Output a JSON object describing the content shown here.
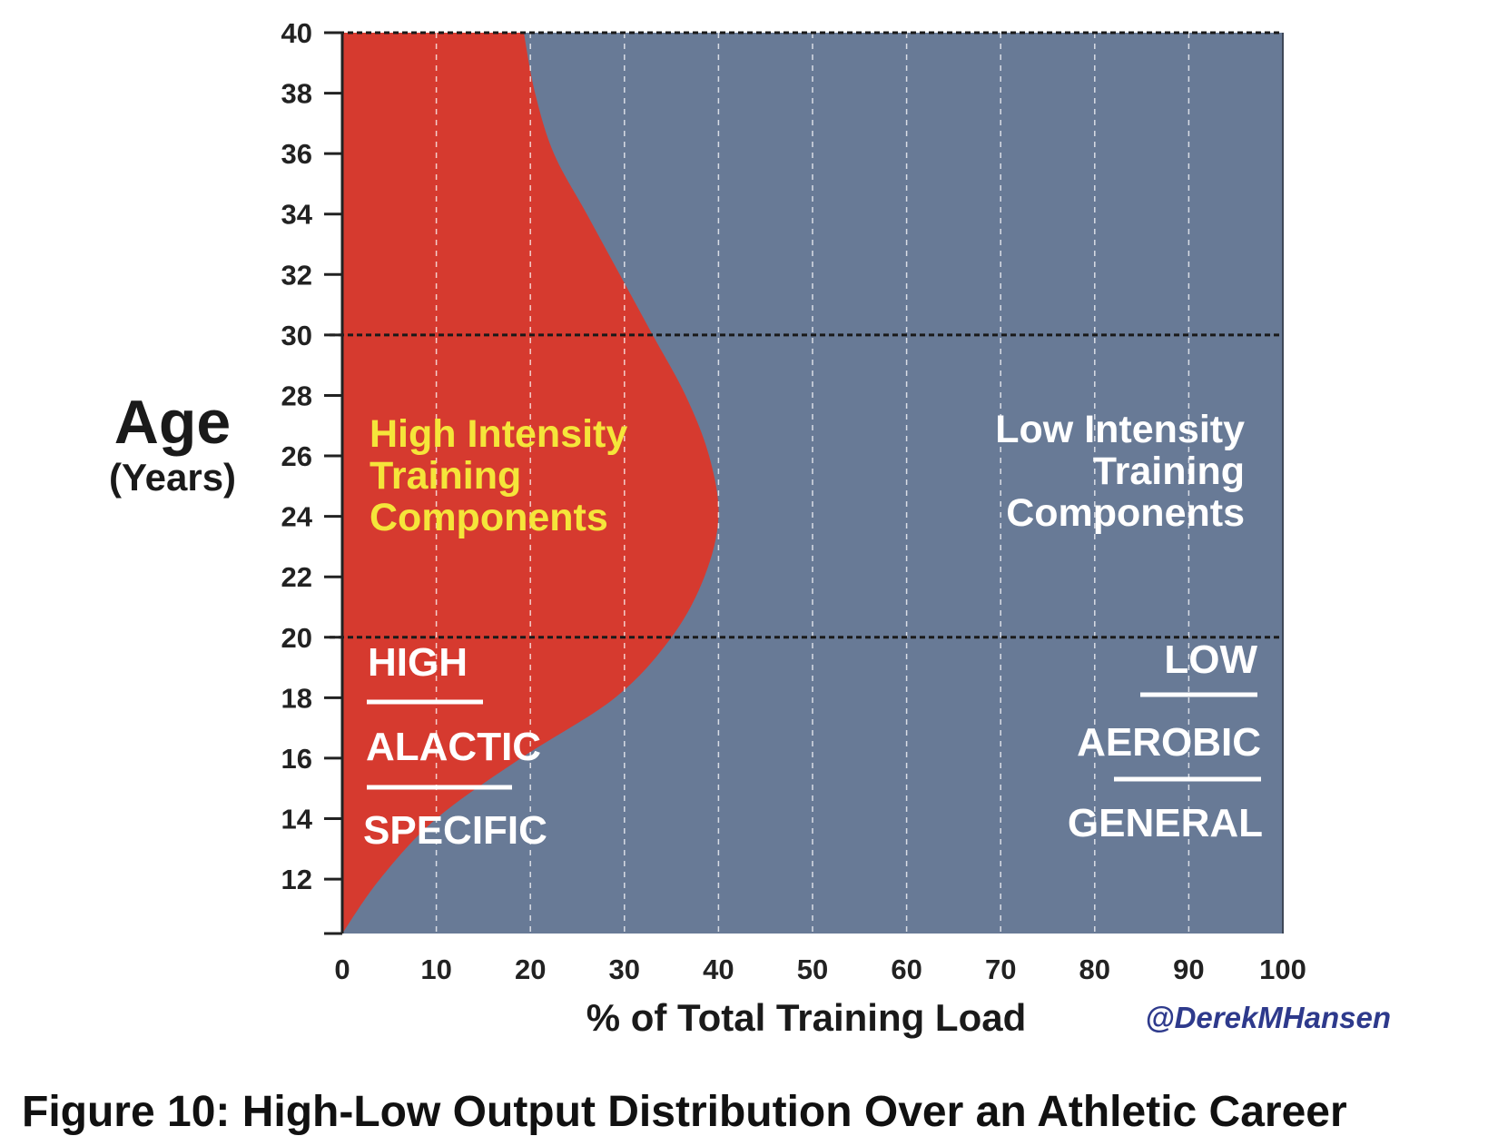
{
  "caption": "Figure 10:  High-Low Output Distribution Over an Athletic Career",
  "chart_data": {
    "type": "area",
    "xlabel": "% of Total Training Load",
    "ylabel": "Age",
    "ylabel_sub": "(Years)",
    "xlim": [
      0,
      100
    ],
    "ylim": [
      10.2,
      40
    ],
    "x_ticks": [
      0,
      10,
      20,
      30,
      40,
      50,
      60,
      70,
      80,
      90,
      100
    ],
    "y_ticks": [
      12,
      14,
      16,
      18,
      20,
      22,
      24,
      26,
      28,
      30,
      32,
      34,
      36,
      38,
      40
    ],
    "horizontal_reference_lines": [
      20,
      30,
      40
    ],
    "grid": "vertical dashed",
    "credit": "@DerekMHansen",
    "colors": {
      "high_intensity": "#d63a2f",
      "low_intensity": "#687a96",
      "high_label": "#f5e53a",
      "credit": "#2e3a8c"
    },
    "series": [
      {
        "name": "High Intensity Training Components",
        "boundary": [
          {
            "age": 10.2,
            "pct": 0
          },
          {
            "age": 12,
            "pct": 4
          },
          {
            "age": 14,
            "pct": 10
          },
          {
            "age": 16,
            "pct": 19
          },
          {
            "age": 18,
            "pct": 29
          },
          {
            "age": 20,
            "pct": 35
          },
          {
            "age": 22,
            "pct": 38.5
          },
          {
            "age": 24,
            "pct": 40
          },
          {
            "age": 26,
            "pct": 39
          },
          {
            "age": 28,
            "pct": 36.5
          },
          {
            "age": 30,
            "pct": 33
          },
          {
            "age": 32,
            "pct": 29.5
          },
          {
            "age": 34,
            "pct": 26
          },
          {
            "age": 36,
            "pct": 22.5
          },
          {
            "age": 38,
            "pct": 20.5
          },
          {
            "age": 40,
            "pct": 19.3
          }
        ]
      },
      {
        "name": "Low Intensity Training Components",
        "fill": "remainder to 100"
      }
    ],
    "region_labels": {
      "high": [
        "High Intensity",
        "Training",
        "Components"
      ],
      "low": [
        "Low Intensity",
        "Training",
        "Components"
      ]
    },
    "component_labels": {
      "high": [
        "HIGH",
        "ALACTIC",
        "SPECIFIC"
      ],
      "low": [
        "LOW",
        "AEROBIC",
        "GENERAL"
      ]
    }
  }
}
